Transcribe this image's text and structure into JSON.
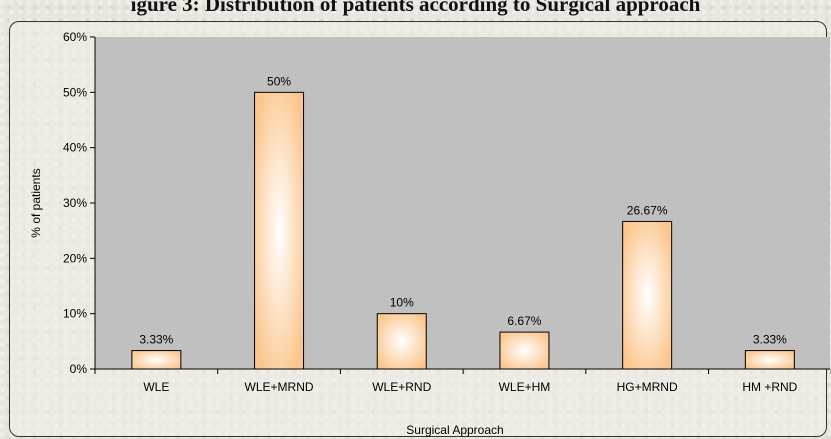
{
  "title_fragment": "igure 3: Distribution of patients according to Surgical approach",
  "chart_data": {
    "type": "bar",
    "categories": [
      "WLE",
      "WLE+MRND",
      "WLE+RND",
      "WLE+HM",
      "HG+MRND",
      "HM +RND"
    ],
    "values": [
      3.33,
      50,
      10,
      6.67,
      26.67,
      3.33
    ],
    "data_labels": [
      "3.33%",
      "50%",
      "10%",
      "6.67%",
      "26.67%",
      "3.33%"
    ],
    "xlabel": "Surgical Approach",
    "ylabel": "% of patients",
    "ylim": [
      0,
      60
    ],
    "yticks": [
      0,
      10,
      20,
      30,
      40,
      50,
      60
    ],
    "ytick_labels": [
      "0%",
      "10%",
      "20%",
      "30%",
      "40%",
      "50%",
      "60%"
    ],
    "grid": false,
    "colors": {
      "plot_bg": "#c0c0c0",
      "bar_edge": "#5a3a1a",
      "bar_light": "#fff6ea",
      "bar_dark": "#fbc68d"
    }
  }
}
